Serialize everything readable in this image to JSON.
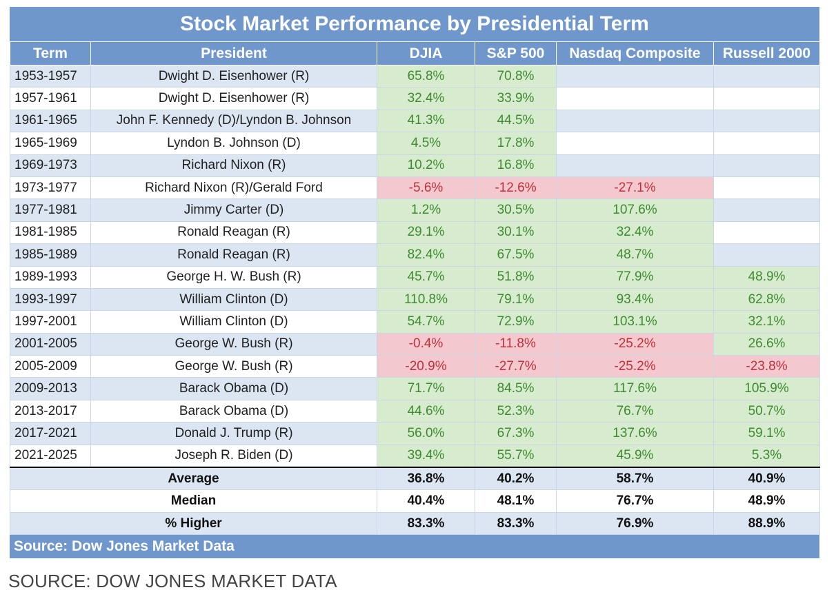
{
  "chart_data": {
    "type": "table",
    "title": "Stock Market Performance by Presidential Term",
    "columns": [
      "Term",
      "President",
      "DJIA",
      "S&P 500",
      "Nasdaq Composite",
      "Russell 2000"
    ],
    "rows": [
      {
        "term": "1953-1957",
        "president": "Dwight D. Eisenhower (R)",
        "values": [
          "65.8%",
          "70.8%",
          "",
          ""
        ]
      },
      {
        "term": "1957-1961",
        "president": "Dwight D. Eisenhower (R)",
        "values": [
          "32.4%",
          "33.9%",
          "",
          ""
        ]
      },
      {
        "term": "1961-1965",
        "president": "John F. Kennedy (D)/Lyndon B. Johnson",
        "values": [
          "41.3%",
          "44.5%",
          "",
          ""
        ]
      },
      {
        "term": "1965-1969",
        "president": "Lyndon B. Johnson (D)",
        "values": [
          "4.5%",
          "17.8%",
          "",
          ""
        ]
      },
      {
        "term": "1969-1973",
        "president": "Richard Nixon (R)",
        "values": [
          "10.2%",
          "16.8%",
          "",
          ""
        ]
      },
      {
        "term": "1973-1977",
        "president": "Richard Nixon (R)/Gerald Ford",
        "values": [
          "-5.6%",
          "-12.6%",
          "-27.1%",
          ""
        ]
      },
      {
        "term": "1977-1981",
        "president": "Jimmy Carter (D)",
        "values": [
          "1.2%",
          "30.5%",
          "107.6%",
          ""
        ]
      },
      {
        "term": "1981-1985",
        "president": "Ronald Reagan (R)",
        "values": [
          "29.1%",
          "30.1%",
          "32.4%",
          ""
        ]
      },
      {
        "term": "1985-1989",
        "president": "Ronald Reagan (R)",
        "values": [
          "82.4%",
          "67.5%",
          "48.7%",
          ""
        ]
      },
      {
        "term": "1989-1993",
        "president": "George H. W. Bush (R)",
        "values": [
          "45.7%",
          "51.8%",
          "77.9%",
          "48.9%"
        ]
      },
      {
        "term": "1993-1997",
        "president": "William Clinton (D)",
        "values": [
          "110.8%",
          "79.1%",
          "93.4%",
          "62.8%"
        ]
      },
      {
        "term": "1997-2001",
        "president": "William Clinton (D)",
        "values": [
          "54.7%",
          "72.9%",
          "103.1%",
          "32.1%"
        ]
      },
      {
        "term": "2001-2005",
        "president": "George W. Bush (R)",
        "values": [
          "-0.4%",
          "-11.8%",
          "-25.2%",
          "26.6%"
        ]
      },
      {
        "term": "2005-2009",
        "president": "George W. Bush (R)",
        "values": [
          "-20.9%",
          "-27.7%",
          "-25.2%",
          "-23.8%"
        ]
      },
      {
        "term": "2009-2013",
        "president": "Barack Obama (D)",
        "values": [
          "71.7%",
          "84.5%",
          "117.6%",
          "105.9%"
        ]
      },
      {
        "term": "2013-2017",
        "president": "Barack Obama (D)",
        "values": [
          "44.6%",
          "52.3%",
          "76.7%",
          "50.7%"
        ]
      },
      {
        "term": "2017-2021",
        "president": "Donald J. Trump (R)",
        "values": [
          "56.0%",
          "67.3%",
          "137.6%",
          "59.1%"
        ]
      },
      {
        "term": "2021-2025",
        "president": "Joseph R. Biden (D)",
        "values": [
          "39.4%",
          "55.7%",
          "45.9%",
          "5.3%"
        ]
      }
    ],
    "summary": [
      {
        "label": "Average",
        "values": [
          "36.8%",
          "40.2%",
          "58.7%",
          "40.9%"
        ]
      },
      {
        "label": "Median",
        "values": [
          "40.4%",
          "48.1%",
          "76.7%",
          "48.9%"
        ]
      },
      {
        "label": "% Higher",
        "values": [
          "83.3%",
          "83.3%",
          "76.9%",
          "88.9%"
        ]
      }
    ],
    "source_note": "Source: Dow Jones Market Data",
    "colors": {
      "header_bg": "#6f97cc",
      "positive_bg": "#d7eccf",
      "positive_text": "#3e8a2f",
      "negative_bg": "#f3c8ce",
      "negative_text": "#c0303a",
      "band_bg": "#dce6f2"
    }
  },
  "caption": "SOURCE: DOW JONES MARKET DATA"
}
